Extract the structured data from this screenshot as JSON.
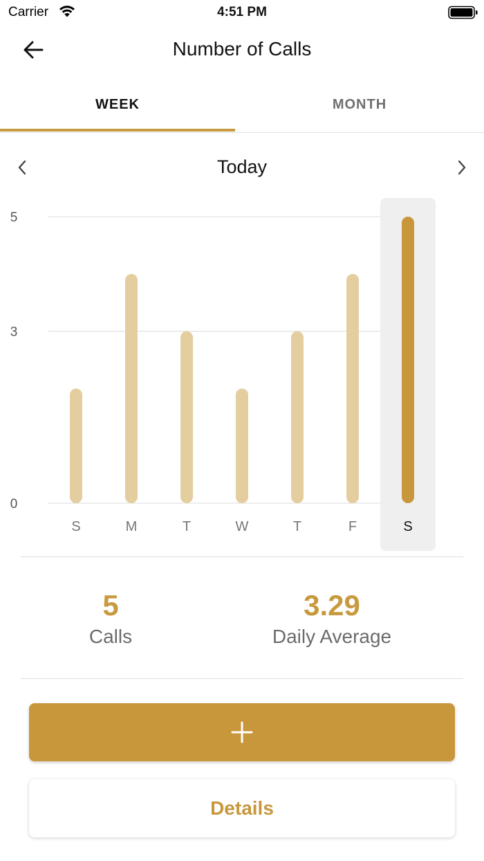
{
  "status_bar": {
    "carrier": "Carrier",
    "time": "4:51 PM"
  },
  "nav": {
    "title": "Number of Calls",
    "back_icon": "arrow-left-icon"
  },
  "tabs": [
    {
      "label": "WEEK",
      "selected": true
    },
    {
      "label": "MONTH",
      "selected": false
    }
  ],
  "period": {
    "label": "Today",
    "prev_icon": "chevron-left-icon",
    "next_icon": "chevron-right-icon"
  },
  "chart_data": {
    "type": "bar",
    "categories": [
      "S",
      "M",
      "T",
      "W",
      "T",
      "F",
      "S"
    ],
    "values": [
      2,
      4,
      3,
      2,
      3,
      4,
      5
    ],
    "y_ticks": [
      0,
      3,
      5
    ],
    "ylim": [
      0,
      5
    ],
    "selected_index": 6,
    "grid": true,
    "colors": {
      "bar": "#e4cea0",
      "bar_selected": "#c8973c",
      "highlight": "#efefef",
      "grid": "#dcdcdc"
    }
  },
  "stats": {
    "calls": {
      "value": "5",
      "label": "Calls"
    },
    "average": {
      "value": "3.29",
      "label": "Daily Average"
    }
  },
  "actions": {
    "add_icon": "plus-icon",
    "details_label": "Details"
  },
  "colors": {
    "accent": "#c8973c",
    "muted_text": "#6b6b6b"
  }
}
